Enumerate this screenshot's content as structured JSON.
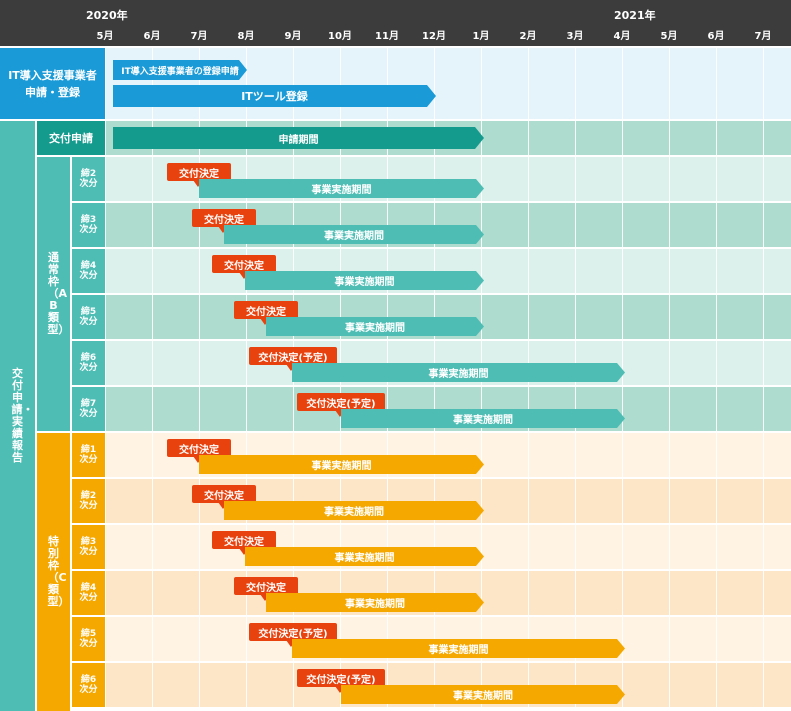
{
  "timeline": {
    "years": [
      "2020年",
      "2021年"
    ],
    "months": [
      "5月",
      "6月",
      "7月",
      "8月",
      "9月",
      "10月",
      "11月",
      "12月",
      "1月",
      "2月",
      "3月",
      "4月",
      "5月",
      "6月",
      "7月"
    ]
  },
  "it_section": {
    "label": "IT導入支援事業者\n申請・登録",
    "bar_registration": "IT導入支援事業者の登録申請",
    "bar_tool": "ITツール登録"
  },
  "main_section": {
    "label": "交付申請・実績報告",
    "apply_label": "交付申請",
    "apply_bar": "申請期間"
  },
  "normal_frame": {
    "label": "通常枠（A・B類型）",
    "rows": [
      {
        "label": "締2次分",
        "badge": "交付決定",
        "bar": "事業実施期間"
      },
      {
        "label": "締3次分",
        "badge": "交付決定",
        "bar": "事業実施期間"
      },
      {
        "label": "締4次分",
        "badge": "交付決定",
        "bar": "事業実施期間"
      },
      {
        "label": "締5次分",
        "badge": "交付決定",
        "bar": "事業実施期間"
      },
      {
        "label": "締6次分",
        "badge": "交付決定(予定)",
        "bar": "事業実施期間"
      },
      {
        "label": "締7次分",
        "badge": "交付決定(予定)",
        "bar": "事業実施期間"
      }
    ]
  },
  "special_frame": {
    "label": "特別枠（C類型）",
    "rows": [
      {
        "label": "締1次分",
        "badge": "交付決定",
        "bar": "事業実施期間"
      },
      {
        "label": "締2次分",
        "badge": "交付決定",
        "bar": "事業実施期間"
      },
      {
        "label": "締3次分",
        "badge": "交付決定",
        "bar": "事業実施期間"
      },
      {
        "label": "締4次分",
        "badge": "交付決定",
        "bar": "事業実施期間"
      },
      {
        "label": "締5次分",
        "badge": "交付決定(予定)",
        "bar": "事業実施期間"
      },
      {
        "label": "締6次分",
        "badge": "交付決定(予定)",
        "bar": "事業実施期間"
      }
    ]
  },
  "colors": {
    "header": "#3c3c3c",
    "it_bar": "#1a9ad6",
    "it_bg": "#e5f3fb",
    "apply_bar": "#159b8d",
    "teal_bar": "#4ebdb4",
    "teal_label": "#4ebdb4",
    "teal_bg_a": "#dcf0ec",
    "teal_bg_b": "#aedccf",
    "orange_bar": "#f5a800",
    "orange_label": "#f5a800",
    "orange_bg_a": "#fff4e3",
    "orange_bg_b": "#fde6c8",
    "badge": "#e8420e"
  }
}
